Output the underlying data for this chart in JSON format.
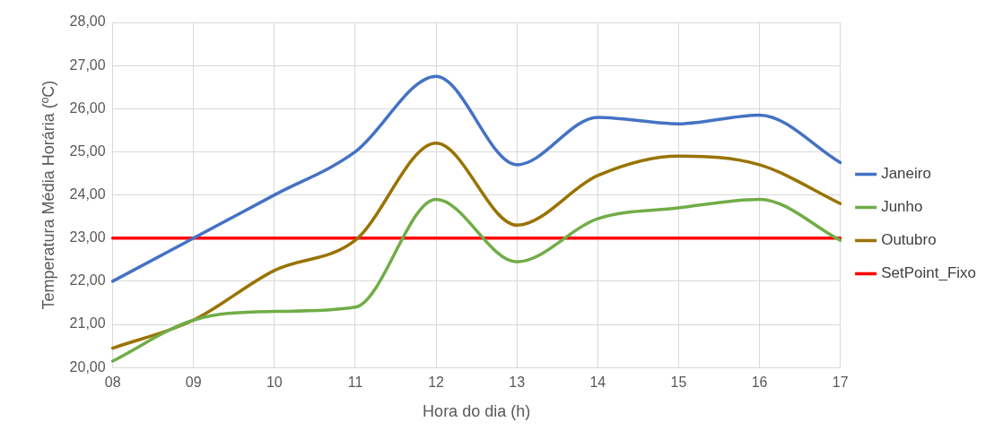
{
  "chart_data": {
    "type": "line",
    "xlabel": "Hora do dia (h)",
    "ylabel": "Temperatura Média Horária (ºC)",
    "categories": [
      "08",
      "09",
      "10",
      "11",
      "12",
      "13",
      "14",
      "15",
      "16",
      "17"
    ],
    "series": [
      {
        "name": "Janeiro",
        "color": "#4472c4",
        "values": [
          22.0,
          23.0,
          24.0,
          25.0,
          26.75,
          24.7,
          25.8,
          25.65,
          25.85,
          24.75
        ]
      },
      {
        "name": "Junho",
        "color": "#70ad47",
        "values": [
          20.15,
          21.1,
          21.3,
          21.4,
          23.9,
          22.45,
          23.45,
          23.7,
          23.9,
          22.95
        ]
      },
      {
        "name": "Outubro",
        "color": "#997300",
        "values": [
          20.45,
          21.1,
          22.25,
          22.95,
          25.2,
          23.3,
          24.45,
          24.9,
          24.7,
          23.8
        ]
      },
      {
        "name": "SetPoint_Fixo",
        "color": "#ff0000",
        "values": [
          23,
          23,
          23,
          23,
          23,
          23,
          23,
          23,
          23,
          23
        ]
      }
    ],
    "ylim": [
      20,
      28
    ],
    "yticks": [
      {
        "value": 20,
        "label": "20,00"
      },
      {
        "value": 21,
        "label": "21,00"
      },
      {
        "value": 22,
        "label": "22,00"
      },
      {
        "value": 23,
        "label": "23,00"
      },
      {
        "value": 24,
        "label": "24,00"
      },
      {
        "value": 25,
        "label": "25,00"
      },
      {
        "value": 26,
        "label": "26,00"
      },
      {
        "value": 27,
        "label": "27,00"
      },
      {
        "value": 28,
        "label": "28,00"
      }
    ],
    "grid": true,
    "legend": "right",
    "marker": "none",
    "line_style": "solid"
  }
}
